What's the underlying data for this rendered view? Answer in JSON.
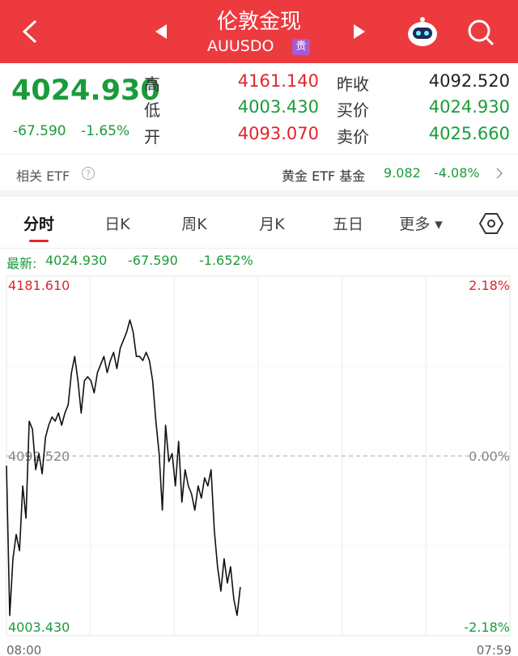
{
  "header": {
    "title": "伦敦金现",
    "code": "AUUSDO",
    "badge": "贵"
  },
  "quote": {
    "price": "4024.930",
    "change": "-67.590",
    "change_pct": "-1.65%",
    "high_label": "高",
    "high": "4161.140",
    "low_label": "低",
    "low": "4003.430",
    "open_label": "开",
    "open": "4093.070",
    "prev_close_label": "昨收",
    "prev_close": "4092.520",
    "bid_label": "买价",
    "bid": "4024.930",
    "ask_label": "卖价",
    "ask": "4025.660"
  },
  "etf": {
    "label": "相关 ETF",
    "name": "黄金 ETF 基金",
    "price": "9.082",
    "change_pct": "-4.08%"
  },
  "tabs": [
    "分时",
    "日K",
    "周K",
    "月K",
    "五日",
    "更多"
  ],
  "latest": {
    "label": "最新:",
    "price": "4024.930",
    "change": "-67.590",
    "change_pct": "-1.652%"
  },
  "chart_data": {
    "type": "line",
    "color": "#111111",
    "values": [
      4087.71,
      4013.52,
      4041.59,
      4053.62,
      4045.6,
      4077.68,
      4061.64,
      4109.76,
      4105.75,
      4085.7,
      4093.72,
      4083.7,
      4101.74,
      4107.76,
      4111.77,
      4109.76,
      4113.77,
      4107.76,
      4113.77,
      4117.78,
      4133.82,
      4141.84,
      4129.81,
      4113.77,
      4129.81,
      4131.82,
      4129.81,
      4123.8,
      4133.82,
      4137.83,
      4141.84,
      4133.82,
      4139.84,
      4143.85,
      4135.83,
      4145.85,
      4149.86,
      4153.87,
      4159.89,
      4153.87,
      4141.84,
      4141.84,
      4139.84,
      4143.85,
      4139.84,
      4129.81,
      4109.76,
      4093.72,
      4065.65,
      4107.76,
      4089.71,
      4093.72,
      4077.68,
      4099.74,
      4069.66,
      4085.7,
      4077.68,
      4073.67,
      4065.65,
      4077.68,
      4071.67,
      4081.69,
      4077.68,
      4085.7,
      4055.63,
      4037.58,
      4025.55,
      4041.59,
      4029.56,
      4037.58,
      4021.54,
      4013.52,
      4027.56
    ],
    "ylim": [
      4003.43,
      4181.61
    ],
    "yticks": [
      {
        "value": 4181.61,
        "label": "4181.610"
      },
      {
        "value": 4092.52,
        "label": "4092.520"
      },
      {
        "value": 4003.43,
        "label": "4003.430"
      }
    ],
    "y2lim": [
      -2.18,
      2.18
    ],
    "y2ticks": [
      {
        "value": 2.18,
        "label": "2.18%"
      },
      {
        "value": 0,
        "label": "0.00%"
      },
      {
        "value": -2.18,
        "label": "-2.18%"
      }
    ],
    "x_labels": [
      "08:00",
      "07:59"
    ],
    "grid": true
  }
}
